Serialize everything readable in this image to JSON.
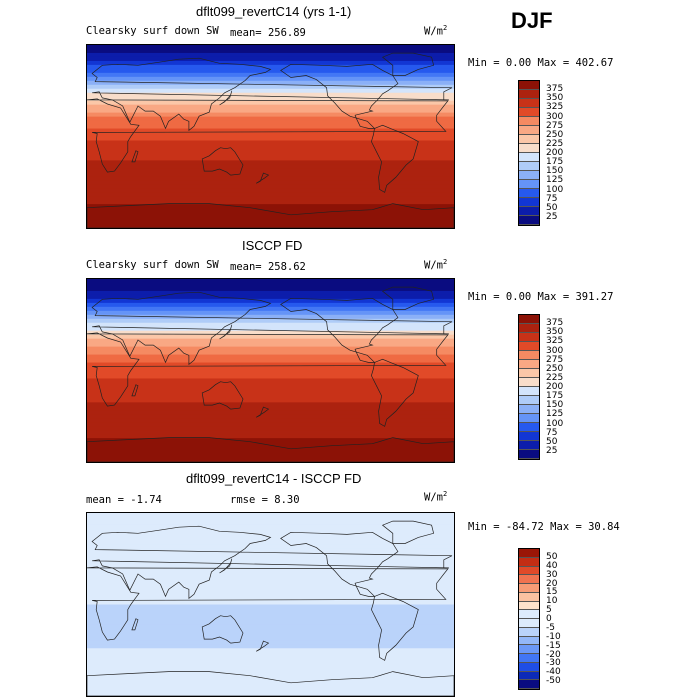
{
  "season": "DJF",
  "colors": {
    "seq": [
      "#0a0c80",
      "#0c1dab",
      "#1236d4",
      "#2659ee",
      "#4377f5",
      "#6594f7",
      "#8bb0f7",
      "#afccf8",
      "#d3e4fb",
      "#f8ddca",
      "#fbc7a8",
      "#f9a884",
      "#f58a62",
      "#ef6a43",
      "#e14a28",
      "#c83218",
      "#ac220f",
      "#8c1206"
    ],
    "diff": [
      "#0a0c80",
      "#0c2ab8",
      "#1f4ee6",
      "#4276f4",
      "#6b98f7",
      "#93b7f8",
      "#bad3fa",
      "#ddebfc",
      "#fde2cc",
      "#fbc2a1",
      "#f79c76",
      "#f07350",
      "#e04a29",
      "#c32d14",
      "#9a1607"
    ]
  },
  "chart_data": [
    {
      "type": "heatmap",
      "title": "dflt099_revertC14 (yrs 1-1)",
      "variable": "Clearsky surf down SW",
      "stat_label": "mean=",
      "stat_value": "256.89",
      "units": "W/m",
      "units_sup": "2",
      "min_max": "Min =    0.00 Max = 402.67",
      "colorbar": [
        "375",
        "350",
        "325",
        "300",
        "275",
        "250",
        "225",
        "200",
        "175",
        "150",
        "125",
        "100",
        "75",
        "50",
        "25"
      ],
      "lat_profile": [
        {
          "lat": 90,
          "value": 0
        },
        {
          "lat": 75,
          "value": 35
        },
        {
          "lat": 60,
          "value": 110
        },
        {
          "lat": 45,
          "value": 185
        },
        {
          "lat": 30,
          "value": 250
        },
        {
          "lat": 15,
          "value": 300
        },
        {
          "lat": 0,
          "value": 330
        },
        {
          "lat": -15,
          "value": 350
        },
        {
          "lat": -30,
          "value": 360
        },
        {
          "lat": -45,
          "value": 365
        },
        {
          "lat": -60,
          "value": 370
        },
        {
          "lat": -75,
          "value": 390
        },
        {
          "lat": -90,
          "value": 400
        }
      ]
    },
    {
      "type": "heatmap",
      "title": "ISCCP FD",
      "variable": "Clearsky surf down SW",
      "stat_label": "mean=",
      "stat_value": "258.62",
      "units": "W/m",
      "units_sup": "2",
      "min_max": "Min =    0.00 Max = 391.27",
      "colorbar": [
        "375",
        "350",
        "325",
        "300",
        "275",
        "250",
        "225",
        "200",
        "175",
        "150",
        "125",
        "100",
        "75",
        "50",
        "25"
      ],
      "lat_profile": [
        {
          "lat": 90,
          "value": 0
        },
        {
          "lat": 75,
          "value": 30
        },
        {
          "lat": 60,
          "value": 105
        },
        {
          "lat": 45,
          "value": 180
        },
        {
          "lat": 30,
          "value": 245
        },
        {
          "lat": 15,
          "value": 295
        },
        {
          "lat": 0,
          "value": 325
        },
        {
          "lat": -15,
          "value": 345
        },
        {
          "lat": -30,
          "value": 355
        },
        {
          "lat": -45,
          "value": 360
        },
        {
          "lat": -60,
          "value": 370
        },
        {
          "lat": -75,
          "value": 385
        },
        {
          "lat": -90,
          "value": 390
        }
      ]
    },
    {
      "type": "heatmap",
      "title": "dflt099_revertC14 - ISCCP FD",
      "stat_label": "mean =",
      "stat_value": "-1.74",
      "stat2_label": "rmse =",
      "stat2_value": "8.30",
      "units": "W/m",
      "units_sup": "2",
      "min_max": "Min = -84.72 Max =  30.84",
      "colorbar": [
        "50",
        "40",
        "30",
        "20",
        "15",
        "10",
        "5",
        "0",
        "-5",
        "-10",
        "-15",
        "-20",
        "-30",
        "-40",
        "-50"
      ],
      "lat_profile": [
        {
          "lat": 90,
          "value": 0
        },
        {
          "lat": 60,
          "value": -2
        },
        {
          "lat": 40,
          "value": 3
        },
        {
          "lat": 20,
          "value": 2
        },
        {
          "lat": 0,
          "value": -4
        },
        {
          "lat": -15,
          "value": -10
        },
        {
          "lat": -30,
          "value": -7
        },
        {
          "lat": -45,
          "value": -3
        },
        {
          "lat": -60,
          "value": -1
        },
        {
          "lat": -90,
          "value": 1
        }
      ]
    }
  ]
}
